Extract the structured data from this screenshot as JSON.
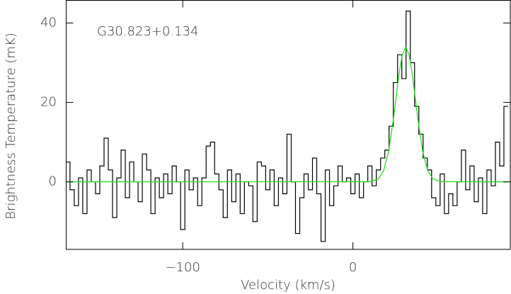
{
  "chart_data": {
    "type": "step",
    "annotation": "G30.823+0.134",
    "x_label": "Velocity (km/s)",
    "y_label": "Brightness Temperature (mK)",
    "xlim": [
      -168.5,
      92.5
    ],
    "ylim": [
      -17,
      45.7
    ],
    "xticks": [
      {
        "value": -100,
        "label": "−100"
      },
      0
    ],
    "yticks": [
      0,
      20,
      40
    ],
    "series": [
      {
        "color": "#000000",
        "x": [
          -167.5,
          -165,
          -162.5,
          -160,
          -157.5,
          -155,
          -152.5,
          -150,
          -147.5,
          -145,
          -142.5,
          -140,
          -137.5,
          -135,
          -132.5,
          -130,
          -127.5,
          -125,
          -122.5,
          -120,
          -117.5,
          -115,
          -112.5,
          -110,
          -107.5,
          -105,
          -102.5,
          -100,
          -97.5,
          -95,
          -92.5,
          -90,
          -87.5,
          -85,
          -82.5,
          -80,
          -77.5,
          -75,
          -72.5,
          -70,
          -67.5,
          -65,
          -62.5,
          -60,
          -57.5,
          -55,
          -52.5,
          -50,
          -47.5,
          -45,
          -42.5,
          -40,
          -37.5,
          -35,
          -32.5,
          -30,
          -27.5,
          -25,
          -22.5,
          -20,
          -17.5,
          -15,
          -12.5,
          -10,
          -7.5,
          -5,
          -2.5,
          0,
          2.5,
          5,
          7.5,
          10,
          12.5,
          15,
          17.5,
          20,
          22.5,
          25,
          27.5,
          30,
          32.5,
          35,
          37.5,
          40,
          42.5,
          45,
          47.5,
          50,
          52.5,
          55,
          57.5,
          60,
          62.5,
          65,
          67.5,
          70,
          72.5,
          75,
          77.5,
          80,
          82.5,
          85,
          87.5,
          90
        ],
        "values": [
          5,
          -2,
          -6,
          1,
          -8,
          3,
          0,
          -3,
          4,
          11,
          3,
          -9,
          1,
          8,
          -4,
          5,
          0,
          -5,
          7,
          3,
          -8,
          1,
          -4,
          2,
          -3,
          4,
          0,
          -12,
          3,
          -2,
          1,
          -6,
          1,
          9,
          10,
          2,
          -2,
          -9,
          3,
          -5,
          2,
          -8,
          0,
          -1,
          -10,
          5,
          4,
          -2,
          3,
          -6,
          1,
          -3,
          12,
          0,
          -13,
          -4,
          2,
          -2,
          6,
          -3,
          -15,
          3,
          -6,
          -1,
          4,
          0,
          1,
          -3,
          2,
          -4,
          0,
          4,
          -1,
          3,
          6,
          8,
          14,
          25,
          32,
          26,
          43,
          30,
          19,
          12,
          6,
          3,
          -4,
          -6,
          2,
          -8,
          -3,
          -6,
          0,
          8,
          -2,
          4,
          -5,
          1,
          -8,
          3,
          -1,
          10,
          4,
          19
        ]
      },
      {
        "type": "line",
        "color": "#22dd22",
        "x": [
          -168.5,
          10,
          15,
          18,
          21,
          24,
          27,
          29,
          31,
          33,
          35,
          38,
          41,
          44,
          47,
          52,
          92.5
        ],
        "values": [
          0,
          0.05,
          0.76,
          2.76,
          7.7,
          16.4,
          26.8,
          32,
          34,
          32,
          26.8,
          16.4,
          7.7,
          2.76,
          0.76,
          0.05,
          0
        ]
      }
    ]
  }
}
